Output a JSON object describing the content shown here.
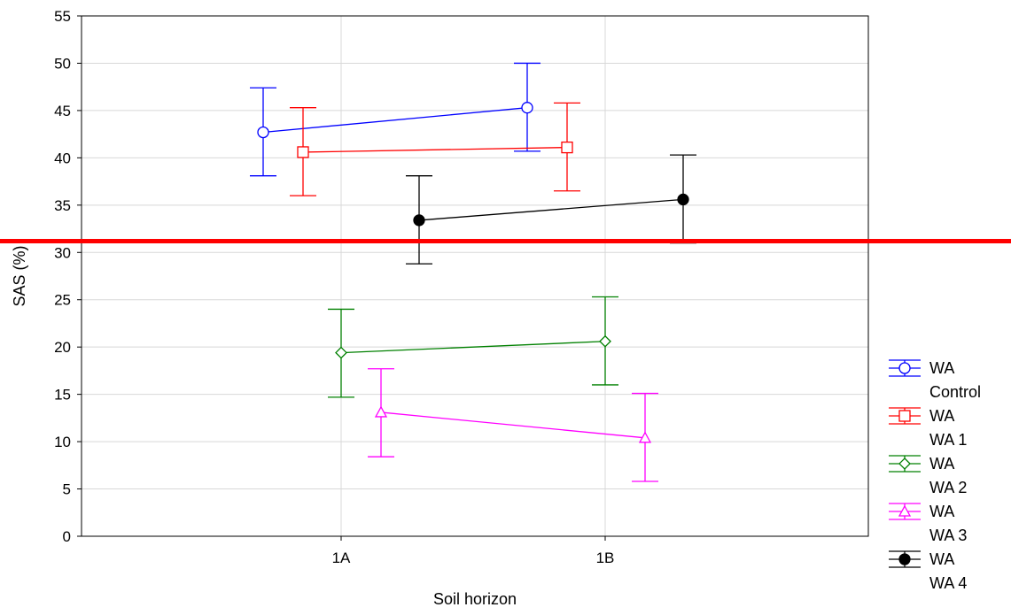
{
  "chart_data": {
    "type": "line",
    "title": "",
    "xlabel": "Soil horizon",
    "ylabel": "SAS (%)",
    "categories": [
      "1A",
      "1B"
    ],
    "ylim": [
      0,
      55
    ],
    "yticks": [
      0,
      5,
      10,
      15,
      20,
      25,
      30,
      35,
      40,
      45,
      50,
      55
    ],
    "grid": true,
    "error_bars": true,
    "reference_line": {
      "y": 31.2,
      "color": "#ff0000"
    },
    "series": [
      {
        "name": "WA Control",
        "legend_lines": [
          "WA",
          "Control"
        ],
        "color": "#0000ff",
        "marker": "circle-open",
        "values": [
          42.7,
          45.3
        ],
        "lower": [
          38.1,
          40.7
        ],
        "upper": [
          47.4,
          50.0
        ]
      },
      {
        "name": "WA WA 1",
        "legend_lines": [
          "WA",
          "WA 1"
        ],
        "color": "#ff0000",
        "marker": "square-open",
        "values": [
          40.6,
          41.1
        ],
        "lower": [
          36.0,
          36.5
        ],
        "upper": [
          45.3,
          45.8
        ]
      },
      {
        "name": "WA WA 2",
        "legend_lines": [
          "WA",
          "WA 2"
        ],
        "color": "#008000",
        "marker": "diamond-open",
        "values": [
          19.4,
          20.6
        ],
        "lower": [
          14.7,
          16.0
        ],
        "upper": [
          24.0,
          25.3
        ]
      },
      {
        "name": "WA WA 3",
        "legend_lines": [
          "WA",
          "WA 3"
        ],
        "color": "#ff00ff",
        "marker": "triangle-open",
        "values": [
          13.1,
          10.4
        ],
        "lower": [
          8.4,
          5.8
        ],
        "upper": [
          17.7,
          15.1
        ]
      },
      {
        "name": "WA WA 4",
        "legend_lines": [
          "WA",
          "WA 4"
        ],
        "color": "#000000",
        "marker": "circle-filled",
        "values": [
          33.4,
          35.6
        ],
        "lower": [
          28.8,
          31.0
        ],
        "upper": [
          38.1,
          40.3
        ]
      }
    ]
  }
}
